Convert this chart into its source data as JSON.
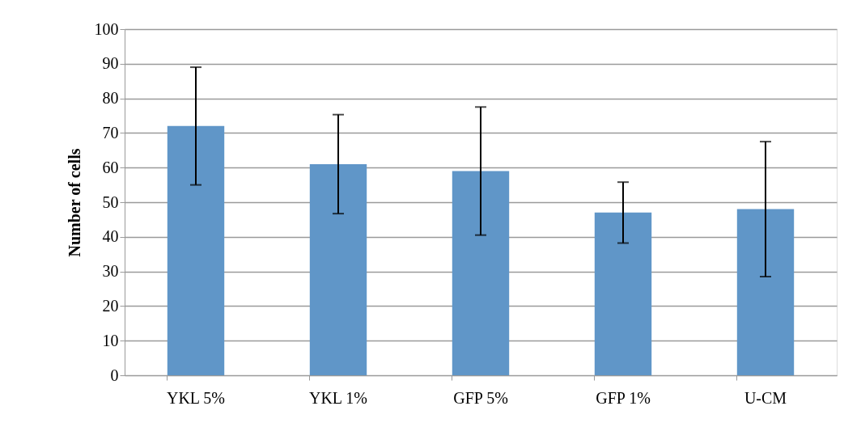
{
  "chart_data": {
    "type": "bar",
    "ylabel": "Number of cells",
    "categories": [
      "YKL 5%",
      "YKL 1%",
      "GFP 5%",
      "GFP 1%",
      "U-CM"
    ],
    "series": [
      {
        "color": "#6096c8",
        "values": [
          72,
          61,
          59,
          47,
          48
        ],
        "errors": [
          17,
          14.3,
          18.5,
          8.8,
          19.5
        ]
      }
    ],
    "ylim": [
      0,
      100
    ],
    "yticks": [
      0,
      10,
      20,
      30,
      40,
      50,
      60,
      70,
      80,
      90,
      100
    ],
    "grid": "y"
  }
}
